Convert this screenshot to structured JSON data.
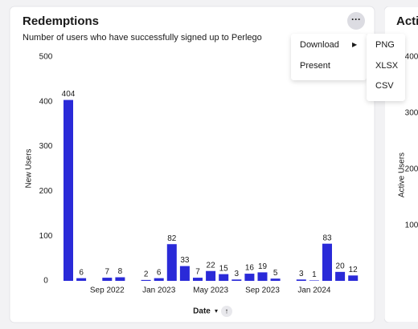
{
  "chart_data": {
    "type": "bar",
    "title": "Redemptions",
    "subtitle": "Number of users who have successfully signed up to Perlego",
    "x_label": "Date",
    "y_label": "New Users",
    "categories": [
      null,
      null,
      null,
      "Sep 2022",
      null,
      null,
      null,
      "Jan 2023",
      null,
      null,
      null,
      "May 2023",
      null,
      null,
      null,
      "Sep 2023",
      null,
      null,
      null,
      "Jan 2024",
      null,
      null,
      null
    ],
    "values": [
      404,
      6,
      null,
      7,
      8,
      null,
      2,
      6,
      82,
      33,
      7,
      22,
      15,
      3,
      16,
      19,
      5,
      null,
      3,
      1,
      83,
      20,
      12
    ],
    "color": "#2a2ad8",
    "ylim": [
      0,
      500
    ],
    "yticks": [
      0,
      100,
      200,
      300,
      400,
      500
    ]
  },
  "menu": {
    "items": [
      "Download",
      "Present"
    ],
    "submenu": [
      "PNG",
      "XLSX",
      "CSV"
    ]
  },
  "second_card": {
    "title": "Active Users",
    "y_label": "Active Users",
    "yticks": [
      "400",
      "300",
      "200",
      "100"
    ]
  }
}
